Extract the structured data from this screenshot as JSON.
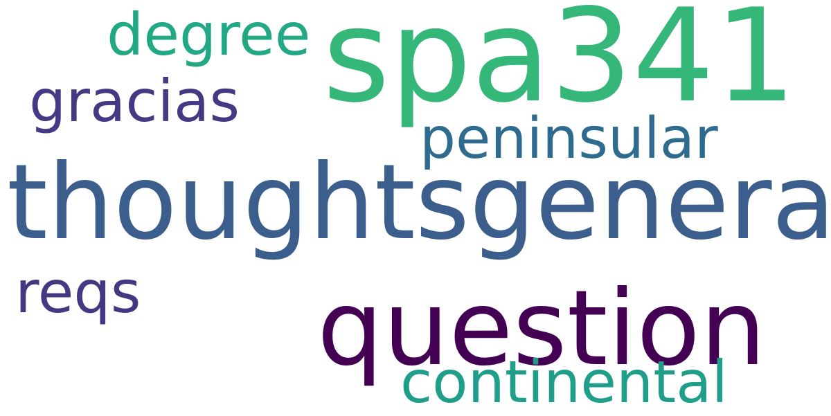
{
  "words": [
    {
      "text": "spa341",
      "color": "#35b779"
    },
    {
      "text": "degree",
      "color": "#22a884"
    },
    {
      "text": "gracias",
      "color": "#443983"
    },
    {
      "text": "peninsular",
      "color": "#2f6b8e"
    },
    {
      "text": "thoughtsgeneral",
      "color": "#3b5e8c"
    },
    {
      "text": "reqs",
      "color": "#453781"
    },
    {
      "text": "question",
      "color": "#440154"
    },
    {
      "text": "continental",
      "color": "#1f9e89"
    }
  ]
}
